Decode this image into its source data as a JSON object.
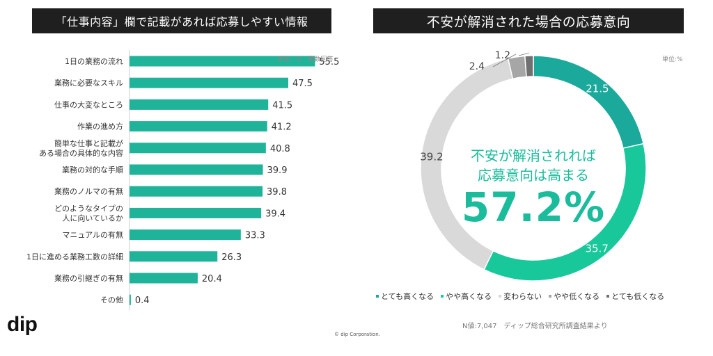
{
  "left_title": "「仕事内容」欄で記載があれば応募しやすい情報",
  "right_title": "不安が解消された場合の応募意向",
  "left_unit": "単位：%　複数回答",
  "right_unit": "単位:%",
  "colors": {
    "bar": "#1fb39a",
    "very_high": "#1aa99a",
    "somewhat_high": "#19c89a",
    "no_change": "#d9d9d9",
    "somewhat_low": "#a6a6a6",
    "very_low": "#707070",
    "accent_text": "#1abc9c"
  },
  "center": {
    "line1": "不安が解消されれば",
    "line2": "応募意向は高まる",
    "pct": "57.2%"
  },
  "source": "N値:7,047　ディップ総合研究所調査結果より",
  "copyright": "© dip Corporation.",
  "logo": "dip",
  "chart_data": [
    {
      "type": "bar",
      "orientation": "horizontal",
      "title": "「仕事内容」欄で記載があれば応募しやすい情報",
      "unit": "%",
      "xlim": [
        0,
        60
      ],
      "categories": [
        [
          "1日の業務の流れ"
        ],
        [
          "業務に必要なスキル"
        ],
        [
          "仕事の大変なところ"
        ],
        [
          "作業の進め方"
        ],
        [
          "簡単な仕事と記載が",
          "ある場合の具体的な内容"
        ],
        [
          "業務の対的な手順"
        ],
        [
          "業務のノルマの有無"
        ],
        [
          "どのようなタイプの",
          "人に向いているか"
        ],
        [
          "マニュアルの有無"
        ],
        [
          "1日に進める業務工数の詳細"
        ],
        [
          "業務の引継ぎの有無"
        ],
        [
          "その他"
        ]
      ],
      "values": [
        55.5,
        47.5,
        41.5,
        41.2,
        40.8,
        39.9,
        39.8,
        39.4,
        33.3,
        26.3,
        20.4,
        0.4
      ]
    },
    {
      "type": "pie",
      "style": "donut",
      "title": "不安が解消された場合の応募意向",
      "unit": "%",
      "labels": [
        "とても高くなる",
        "やや高くなる",
        "変わらない",
        "やや低くなる",
        "とても低くなる"
      ],
      "values": [
        21.5,
        35.7,
        39.2,
        2.4,
        1.2
      ]
    }
  ]
}
